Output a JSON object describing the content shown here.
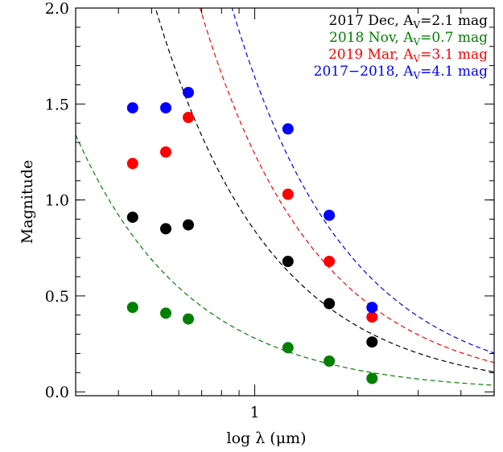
{
  "chart_data": {
    "type": "scatter",
    "xlabel": "log λ (μm)",
    "ylabel": "Magnitude",
    "x_scale": "log",
    "xlim": [
      0.3,
      5.0
    ],
    "ylim": [
      -0.02,
      2.0
    ],
    "x_major_ticks": [
      1
    ],
    "x_minor_ticks": [
      0.4,
      0.5,
      0.6,
      0.7,
      0.8,
      0.9,
      2,
      3,
      4
    ],
    "y_ticks": [
      0.0,
      0.5,
      1.0,
      1.5,
      2.0
    ],
    "y_tick_labels": [
      "0.0",
      "0.5",
      "1.0",
      "1.5",
      "2.0"
    ],
    "grid": false,
    "legend_position": "top-right",
    "series": [
      {
        "name": "2017 Dec, A_V=2.1 mag",
        "legend_main": "2017 Dec, A",
        "legend_sub": "V",
        "legend_tail": "=2.1 mag",
        "color": "#000000",
        "x": [
          0.44,
          0.55,
          0.64,
          1.25,
          1.65,
          2.2
        ],
        "y": [
          0.91,
          0.85,
          0.87,
          0.68,
          0.46,
          0.26
        ],
        "curve": {
          "A": 2.1,
          "k": 1.0,
          "decay": 1.3
        }
      },
      {
        "name": "2018 Nov, A_V=0.7 mag",
        "legend_main": "2018 Nov, A",
        "legend_sub": "V",
        "legend_tail": "=0.7 mag",
        "color": "#008000",
        "x": [
          0.44,
          0.55,
          0.64,
          1.25,
          1.65,
          2.2
        ],
        "y": [
          0.44,
          0.41,
          0.38,
          0.23,
          0.16,
          0.07
        ],
        "curve": {
          "A": 0.7,
          "k": 1.0,
          "decay": 1.3
        }
      },
      {
        "name": "2019 Mar, A_V=3.1 mag",
        "legend_main": "2019 Mar, A",
        "legend_sub": "V",
        "legend_tail": "=3.1 mag",
        "color": "#ff0000",
        "x": [
          0.44,
          0.55,
          0.64,
          1.25,
          1.65,
          2.2
        ],
        "y": [
          1.19,
          1.25,
          1.43,
          1.03,
          0.68,
          0.39
        ],
        "curve": {
          "A": 3.1,
          "k": 1.0,
          "decay": 1.3
        }
      },
      {
        "name": "2017–2018, A_V=4.1 mag",
        "legend_main": "2017−2018, A",
        "legend_sub": "V",
        "legend_tail": "=4.1 mag",
        "color": "#0000ff",
        "x": [
          0.44,
          0.55,
          0.64,
          1.25,
          1.65,
          2.2
        ],
        "y": [
          1.48,
          1.48,
          1.56,
          1.37,
          0.92,
          0.44
        ],
        "curve": {
          "A": 4.1,
          "k": 1.0,
          "decay": 1.3
        }
      }
    ]
  }
}
